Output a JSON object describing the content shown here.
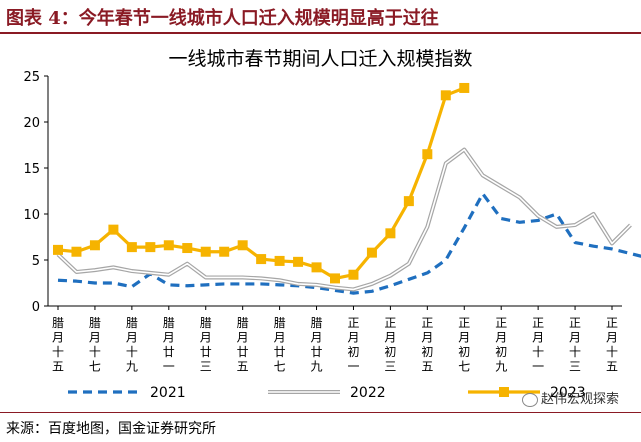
{
  "header": {
    "title": "图表 4：今年春节一线城市人口迁入规模明显高于过往"
  },
  "footer": {
    "source": "来源：百度地图，国金证券研究所"
  },
  "watermark": {
    "text": "赵伟宏观探索"
  },
  "chart_data": {
    "type": "line",
    "title": "一线城市春节期间人口迁入规模指数",
    "ylim": [
      0,
      25
    ],
    "yticks": [
      0,
      5,
      10,
      15,
      20,
      25
    ],
    "grid": false,
    "legend_position": "bottom",
    "xlabels": [
      {
        "index": 0,
        "label": "腊月十五"
      },
      {
        "index": 2,
        "label": "腊月十七"
      },
      {
        "index": 4,
        "label": "腊月十九"
      },
      {
        "index": 6,
        "label": "腊月廿一"
      },
      {
        "index": 8,
        "label": "腊月廿三"
      },
      {
        "index": 10,
        "label": "腊月廿五"
      },
      {
        "index": 12,
        "label": "腊月廿七"
      },
      {
        "index": 14,
        "label": "腊月廿九"
      },
      {
        "index": 16,
        "label": "正月初一"
      },
      {
        "index": 18,
        "label": "正月初三"
      },
      {
        "index": 20,
        "label": "正月初五"
      },
      {
        "index": 22,
        "label": "正月初七"
      },
      {
        "index": 24,
        "label": "正月初九"
      },
      {
        "index": 26,
        "label": "正月十一"
      },
      {
        "index": 28,
        "label": "正月十三"
      },
      {
        "index": 30,
        "label": "正月十五"
      }
    ],
    "series": [
      {
        "name": "2021",
        "color": "#1f6fbf",
        "style": "dashed",
        "values": [
          2.8,
          2.7,
          2.5,
          2.5,
          2.1,
          3.5,
          2.3,
          2.2,
          2.3,
          2.4,
          2.4,
          2.4,
          2.3,
          2.2,
          2.0,
          1.7,
          1.4,
          1.6,
          2.2,
          2.9,
          3.6,
          5.0,
          8.5,
          12.2,
          9.5,
          9.1,
          9.3,
          10.0,
          6.9,
          6.5,
          6.2,
          5.7,
          5.2
        ]
      },
      {
        "name": "2022",
        "color": "#a6a6a6",
        "style": "double",
        "values": [
          5.6,
          3.7,
          3.9,
          4.2,
          3.8,
          3.6,
          3.4,
          4.6,
          3.1,
          3.1,
          3.1,
          3.0,
          2.8,
          2.4,
          2.3,
          2.0,
          1.8,
          2.4,
          3.3,
          4.6,
          8.6,
          15.5,
          17.0,
          14.2,
          13.0,
          11.8,
          9.8,
          8.6,
          8.8,
          10.0,
          6.8,
          8.8
        ]
      },
      {
        "name": "2023",
        "color": "#f6b300",
        "style": "solid-square",
        "values": [
          6.1,
          5.9,
          6.6,
          8.3,
          6.4,
          6.4,
          6.6,
          6.3,
          5.9,
          5.9,
          6.6,
          5.1,
          4.9,
          4.8,
          4.2,
          3.0,
          3.4,
          5.8,
          7.9,
          11.4,
          16.5,
          22.9,
          23.7
        ]
      }
    ]
  }
}
